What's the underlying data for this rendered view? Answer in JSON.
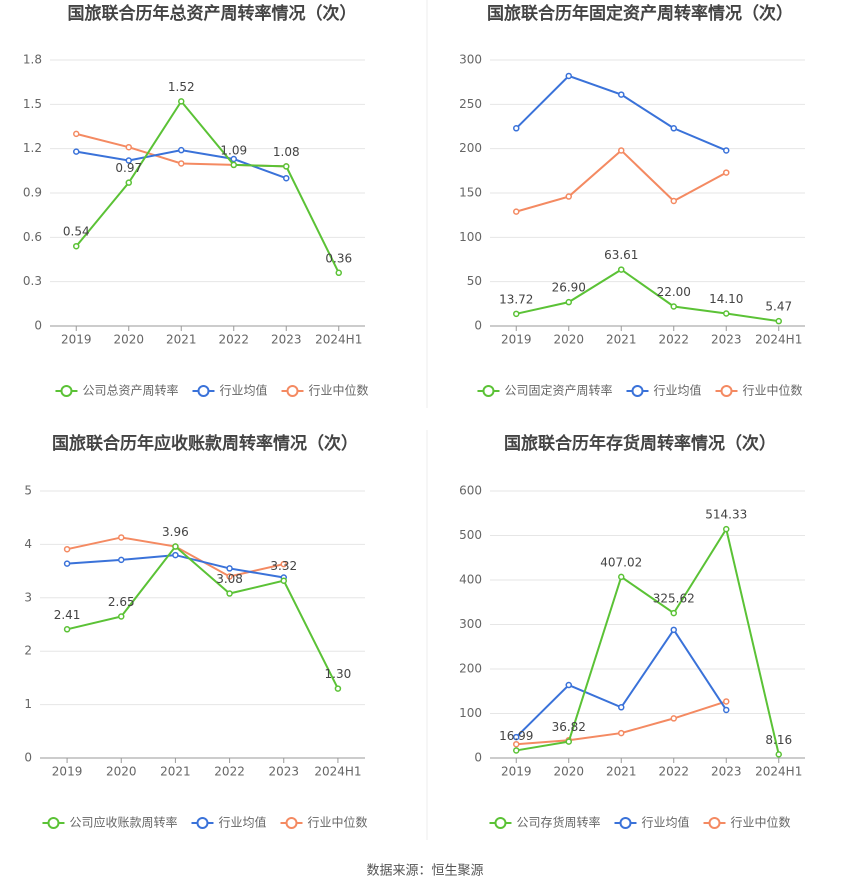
{
  "chart_data": [
    {
      "type": "line",
      "title": "国旅联合历年总资产周转率情况（次）",
      "categories": [
        "2019",
        "2020",
        "2021",
        "2022",
        "2023",
        "2024H1"
      ],
      "ylim": [
        0,
        1.8
      ],
      "yticks": [
        0,
        0.3,
        0.6,
        0.9,
        1.2,
        1.5,
        1.8
      ],
      "grid": true,
      "series": [
        {
          "name": "公司总资产周转率",
          "color": "#5bc236",
          "values": [
            0.54,
            0.97,
            1.52,
            1.09,
            1.08,
            0.36
          ]
        },
        {
          "name": "行业均值",
          "color": "#3a72d9",
          "values": [
            1.18,
            1.12,
            1.19,
            1.13,
            1.0,
            null
          ]
        },
        {
          "name": "行业中位数",
          "color": "#f48a62",
          "values": [
            1.3,
            1.21,
            1.1,
            1.09,
            1.08,
            null
          ]
        }
      ]
    },
    {
      "type": "line",
      "title": "国旅联合历年固定资产周转率情况（次）",
      "categories": [
        "2019",
        "2020",
        "2021",
        "2022",
        "2023",
        "2024H1"
      ],
      "ylim": [
        0,
        300
      ],
      "yticks": [
        0,
        50,
        100,
        150,
        200,
        250,
        300
      ],
      "grid": true,
      "series": [
        {
          "name": "公司固定资产周转率",
          "color": "#5bc236",
          "values": [
            13.72,
            26.9,
            63.61,
            22.0,
            14.1,
            5.47
          ],
          "value_labels": [
            "13.72",
            "26.90",
            "63.61",
            "22.00",
            "14.10",
            "5.47"
          ]
        },
        {
          "name": "行业均值",
          "color": "#3a72d9",
          "values": [
            223,
            282,
            261,
            223,
            198,
            null
          ]
        },
        {
          "name": "行业中位数",
          "color": "#f48a62",
          "values": [
            129,
            146,
            198,
            141,
            173,
            null
          ]
        }
      ]
    },
    {
      "type": "line",
      "title": "国旅联合历年应收账款周转率情况（次）",
      "categories": [
        "2019",
        "2020",
        "2021",
        "2022",
        "2023",
        "2024H1"
      ],
      "ylim": [
        0,
        5
      ],
      "yticks": [
        0,
        1,
        2,
        3,
        4,
        5
      ],
      "grid": true,
      "series": [
        {
          "name": "公司应收账款周转率",
          "color": "#5bc236",
          "values": [
            2.41,
            2.65,
            3.96,
            3.08,
            3.32,
            1.3
          ],
          "value_labels": [
            "2.41",
            "2.65",
            "3.96",
            "3.08",
            "3.32",
            "1.30"
          ]
        },
        {
          "name": "行业均值",
          "color": "#3a72d9",
          "values": [
            3.64,
            3.71,
            3.8,
            3.55,
            3.38,
            null
          ]
        },
        {
          "name": "行业中位数",
          "color": "#f48a62",
          "values": [
            3.91,
            4.13,
            3.96,
            3.4,
            3.63,
            null
          ]
        }
      ]
    },
    {
      "type": "line",
      "title": "国旅联合历年存货周转率情况（次）",
      "categories": [
        "2019",
        "2020",
        "2021",
        "2022",
        "2023",
        "2024H1"
      ],
      "ylim": [
        0,
        600
      ],
      "yticks": [
        0,
        100,
        200,
        300,
        400,
        500,
        600
      ],
      "grid": true,
      "series": [
        {
          "name": "公司存货周转率",
          "color": "#5bc236",
          "values": [
            16.99,
            36.82,
            407.02,
            325.62,
            514.33,
            8.16
          ]
        },
        {
          "name": "行业均值",
          "color": "#3a72d9",
          "values": [
            47,
            164,
            114,
            288,
            108,
            null
          ]
        },
        {
          "name": "行业中位数",
          "color": "#f48a62",
          "values": [
            31,
            40,
            56,
            89,
            127,
            null
          ]
        }
      ]
    }
  ],
  "source": "数据来源：恒生聚源"
}
